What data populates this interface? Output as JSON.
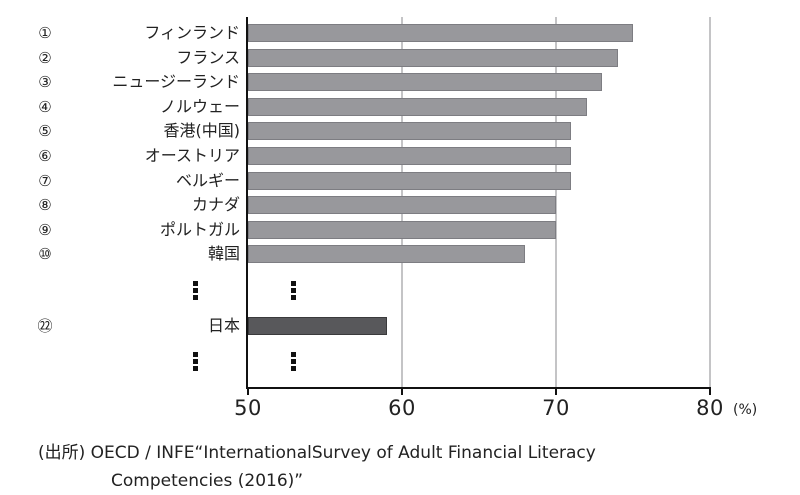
{
  "chart_data": {
    "type": "bar",
    "orientation": "horizontal",
    "title": "",
    "xlabel": "(%)",
    "ylabel": "",
    "xlim": [
      50,
      80
    ],
    "xticks": [
      "50",
      "60",
      "70",
      "80"
    ],
    "grid": true,
    "categories": [
      {
        "rank": "①",
        "name": "フィンランド",
        "value": 75
      },
      {
        "rank": "②",
        "name": "フランス",
        "value": 74
      },
      {
        "rank": "③",
        "name": "ニュージーランド",
        "value": 73
      },
      {
        "rank": "④",
        "name": "ノルウェー",
        "value": 72
      },
      {
        "rank": "⑤",
        "name": "香港(中国)",
        "value": 71
      },
      {
        "rank": "⑥",
        "name": "オーストリア",
        "value": 71
      },
      {
        "rank": "⑦",
        "name": "ベルギー",
        "value": 71
      },
      {
        "rank": "⑧",
        "name": "カナダ",
        "value": 70
      },
      {
        "rank": "⑨",
        "name": "ポルトガル",
        "value": 70
      },
      {
        "rank": "⑩",
        "name": "韓国",
        "value": 68
      }
    ],
    "highlight": {
      "rank": "㉒",
      "name": "日本",
      "value": 59
    },
    "colors": {
      "bar": "#98989c",
      "highlight": "#58585b",
      "grid": "#c4c4c6"
    }
  },
  "axis": {
    "unit": "(%)",
    "ticks": [
      "50",
      "60",
      "70",
      "80"
    ]
  },
  "source": {
    "line1": "(出所) OECD / INFE“InternationalSurvey of Adult Financial Literacy",
    "line2": "Competencies (2016)”"
  }
}
